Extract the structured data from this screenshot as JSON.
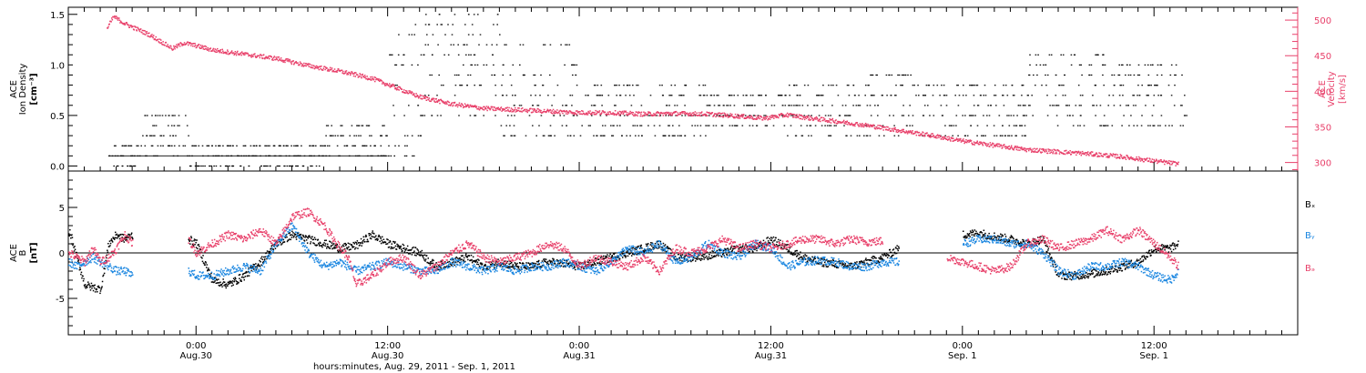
{
  "colors": {
    "black": "#000000",
    "pink": "#e8406a",
    "blue": "#1a86e0"
  },
  "xaxis": {
    "label": "hours:minutes, Aug. 29, 2011 - Sep.  1, 2011",
    "range_hours": [
      -32,
      45
    ],
    "ticks": [
      {
        "t": -24,
        "time": "0:00",
        "date": "Aug.30"
      },
      {
        "t": -12,
        "time": "12:00",
        "date": "Aug.30"
      },
      {
        "t": 0,
        "time": "0:00",
        "date": "Aug.31"
      },
      {
        "t": 12,
        "time": "12:00",
        "date": "Aug.31"
      },
      {
        "t": 24,
        "time": "0:00",
        "date": "Sep. 1"
      },
      {
        "t": 36,
        "time": "12:00",
        "date": "Sep. 1"
      }
    ],
    "minor_step_hours": 1
  },
  "chart_data": [
    {
      "type": "scatter",
      "panel": "top",
      "ylabel_left_lines": [
        "ACE",
        "Ion Density"
      ],
      "ylabel_left_unit": "[cm⁻³]",
      "ylabel_right_lines": [
        "ACE",
        "Velocity"
      ],
      "ylabel_right_unit": "[km/s]",
      "ylim_left": [
        -0.05,
        1.57
      ],
      "yticks_left": [
        "0.0",
        "0.5",
        "1.0",
        "1.5"
      ],
      "yticks_left_values": [
        0.0,
        0.5,
        1.0,
        1.5
      ],
      "ylim_right": [
        288,
        518
      ],
      "yticks_right": [
        "300",
        "350",
        "400",
        "450",
        "500"
      ],
      "yticks_right_values": [
        300,
        350,
        400,
        450,
        500
      ],
      "series": [
        {
          "axis": "left",
          "color": "#000000",
          "note": "quantized density levels",
          "segments": [
            {
              "t0": -29.5,
              "t1": -27.5,
              "levels": [
                0.0,
                0.1,
                0.2
              ]
            },
            {
              "t0": -27.5,
              "t1": -24.5,
              "levels": [
                0.1,
                0.2,
                0.3,
                0.4,
                0.5
              ]
            },
            {
              "t0": -24.5,
              "t1": -16,
              "levels": [
                0.0,
                0.1,
                0.2
              ]
            },
            {
              "t0": -16,
              "t1": -12,
              "levels": [
                0.1,
                0.2,
                0.3,
                0.4
              ]
            },
            {
              "t0": -12,
              "t1": -9.8,
              "levels": [
                0.1,
                0.2,
                0.3,
                0.5,
                0.6,
                0.8,
                1.0,
                1.1,
                1.3,
                1.4
              ]
            },
            {
              "t0": -9.8,
              "t1": -5,
              "levels": [
                0.5,
                0.7,
                0.8,
                0.9,
                1.0,
                1.1,
                1.2,
                1.3,
                1.4,
                1.5
              ]
            },
            {
              "t0": -5,
              "t1": 0,
              "levels": [
                0.3,
                0.4,
                0.5,
                0.6,
                0.7,
                0.8,
                0.9,
                1.0,
                1.2
              ]
            },
            {
              "t0": 0,
              "t1": 8,
              "levels": [
                0.3,
                0.4,
                0.5,
                0.6,
                0.7,
                0.8
              ]
            },
            {
              "t0": 8,
              "t1": 13,
              "levels": [
                0.4,
                0.5,
                0.6,
                0.7
              ]
            },
            {
              "t0": 13,
              "t1": 18,
              "levels": [
                0.3,
                0.4,
                0.5,
                0.6,
                0.7,
                0.8
              ]
            },
            {
              "t0": 18,
              "t1": 21,
              "levels": [
                0.3,
                0.4,
                0.5,
                0.6,
                0.7,
                0.8,
                0.9
              ]
            },
            {
              "t0": 21,
              "t1": 28,
              "levels": [
                0.3,
                0.4,
                0.5,
                0.6,
                0.7,
                0.8
              ]
            },
            {
              "t0": 28,
              "t1": 33,
              "levels": [
                0.4,
                0.5,
                0.6,
                0.7,
                0.8,
                0.9,
                1.0,
                1.1
              ]
            },
            {
              "t0": 33,
              "t1": 38,
              "levels": [
                0.4,
                0.5,
                0.6,
                0.7,
                0.8,
                0.9,
                1.0
              ]
            }
          ]
        },
        {
          "axis": "right",
          "color": "#e8406a",
          "name_note": "solar wind speed",
          "t": [
            -29.6,
            -29.2,
            -28.5,
            -27,
            -25.5,
            -24.8,
            -24.2,
            -23,
            -21,
            -19,
            -17,
            -15,
            -13,
            -11.5,
            -10,
            -8,
            -6,
            -4,
            -2,
            0,
            2,
            4,
            6,
            8,
            10,
            11.5,
            13,
            14.5,
            16,
            18,
            20,
            22,
            24,
            26,
            28,
            30,
            32,
            34,
            36,
            37.5
          ],
          "v": [
            488,
            505,
            495,
            480,
            460,
            468,
            465,
            458,
            452,
            446,
            436,
            428,
            418,
            405,
            392,
            382,
            376,
            374,
            372,
            370,
            370,
            368,
            369,
            368,
            365,
            362,
            367,
            362,
            358,
            352,
            345,
            338,
            330,
            324,
            318,
            315,
            312,
            308,
            302,
            298
          ]
        }
      ]
    },
    {
      "type": "scatter",
      "panel": "bottom",
      "ylabel_left_lines": [
        "ACE",
        "B"
      ],
      "ylabel_left_unit": "[nT]",
      "ylim": [
        -9,
        9
      ],
      "yticks": [
        "-5",
        "0",
        "5"
      ],
      "yticks_values": [
        -5,
        0,
        5
      ],
      "legend_placement": "right",
      "series": [
        {
          "name": "Bₓ",
          "color": "#000000",
          "t": [
            -32,
            -31,
            -30.5,
            -30,
            -29.5,
            -29,
            -28.5,
            -28,
            -27,
            -26,
            -25,
            -24.5,
            -24,
            -23,
            -22,
            -21,
            -20,
            -19,
            -18,
            -17,
            -16,
            -15,
            -14,
            -13,
            -12,
            -11,
            -10,
            -9,
            -8,
            -7,
            -6,
            -5,
            -4,
            -3,
            -2,
            -1,
            0,
            1,
            2,
            3,
            4,
            5,
            6,
            7,
            8,
            9,
            10,
            11,
            12,
            13,
            14,
            15,
            16,
            17,
            18,
            19,
            20,
            21,
            22,
            23,
            24,
            25,
            26,
            27,
            28,
            29,
            30,
            31,
            32,
            33,
            34,
            35,
            36,
            37,
            37.5
          ],
          "v": [
            2.5,
            -3.5,
            -3.8,
            -4.0,
            1.0,
            2.0,
            1.5,
            2.0,
            null,
            null,
            null,
            1.5,
            1.0,
            -3.0,
            -3.5,
            -2.5,
            -1.0,
            1.0,
            2.0,
            1.5,
            1.0,
            0.5,
            0.8,
            2.0,
            1.0,
            0.5,
            0.0,
            -1.5,
            -1.0,
            -0.5,
            -1.5,
            -1.0,
            -1.5,
            -1.5,
            -1.0,
            -1.2,
            -1.5,
            -1.0,
            -0.5,
            0.0,
            0.5,
            1.0,
            -0.5,
            -0.5,
            -0.3,
            0.0,
            0.5,
            0.5,
            1.5,
            0.5,
            -0.5,
            -1.0,
            -1.2,
            -1.5,
            -1.0,
            -0.5,
            0.5,
            null,
            null,
            null,
            2.0,
            2.2,
            1.8,
            1.5,
            1.0,
            1.5,
            -2.5,
            -2.5,
            -2.3,
            -2.0,
            -1.5,
            -1.0,
            0.5,
            0.5,
            1.0
          ]
        },
        {
          "name": "Bᵧ",
          "color": "#1a86e0",
          "t": [
            -32,
            -31.5,
            -31,
            -30.5,
            -30,
            -29.5,
            -29,
            -28.5,
            -28,
            -27,
            -26,
            -25,
            -24.5,
            -24,
            -23,
            -22,
            -21,
            -20,
            -19,
            -18,
            -17,
            -16,
            -15,
            -14,
            -13,
            -12,
            -11,
            -10,
            -9,
            -8,
            -7,
            -6,
            -5,
            -4,
            -3,
            -2,
            -1,
            0,
            1,
            2,
            3,
            4,
            5,
            6,
            7,
            8,
            9,
            10,
            11,
            12,
            13,
            14,
            15,
            16,
            17,
            18,
            19,
            20,
            21,
            22,
            23,
            24,
            25,
            26,
            27,
            28,
            29,
            30,
            31,
            32,
            33,
            34,
            35,
            36,
            37,
            37.5
          ],
          "v": [
            -1.0,
            -1.5,
            -1.0,
            -0.5,
            -1.0,
            -1.5,
            -2.0,
            -2.0,
            -2.5,
            null,
            null,
            null,
            -2.0,
            -2.5,
            -2.5,
            -2.0,
            -1.5,
            -2.0,
            1.0,
            3.0,
            0.0,
            -1.5,
            -1.0,
            -2.0,
            -1.5,
            -1.0,
            -1.5,
            -2.0,
            -2.0,
            -1.0,
            -1.5,
            -2.0,
            -1.5,
            -2.0,
            -1.5,
            -1.5,
            -1.0,
            -1.5,
            -2.0,
            -1.0,
            0.5,
            0.0,
            1.0,
            -1.0,
            -0.5,
            1.0,
            0.0,
            -0.5,
            1.0,
            0.5,
            -1.5,
            -1.0,
            -0.8,
            -1.0,
            -1.5,
            -1.5,
            -1.0,
            -1.0,
            null,
            null,
            null,
            1.0,
            1.5,
            1.5,
            1.0,
            1.0,
            0.0,
            -2.0,
            -2.5,
            -1.5,
            -1.5,
            -1.0,
            -1.5,
            -2.5,
            -3.0,
            -2.0
          ]
        },
        {
          "name": "Bₔ",
          "color": "#e8406a",
          "t": [
            -32,
            -31.5,
            -31,
            -30.5,
            -30,
            -29.5,
            -29,
            -28.5,
            -28,
            -27,
            -26,
            -25,
            -24.5,
            -24,
            -23,
            -22,
            -21,
            -20,
            -19,
            -18,
            -17,
            -16,
            -15,
            -14.5,
            -14,
            -13,
            -12,
            -11,
            -10,
            -9,
            -8,
            -7,
            -6,
            -5,
            -4,
            -3,
            -2,
            -1,
            0,
            1,
            2,
            3,
            4,
            5,
            6,
            7,
            8,
            9,
            10,
            11,
            12,
            13,
            14,
            15,
            16,
            17,
            18,
            19,
            20,
            21,
            22,
            23,
            24,
            25,
            26,
            27,
            28,
            29,
            30,
            31,
            32,
            33,
            34,
            35,
            36,
            37,
            37.5
          ],
          "v": [
            0.0,
            -0.5,
            -1.0,
            0.5,
            -1.0,
            -0.5,
            0.5,
            2.0,
            1.0,
            null,
            null,
            null,
            1.5,
            0.0,
            1.0,
            2.0,
            1.5,
            2.5,
            1.0,
            4.0,
            4.5,
            3.0,
            0.5,
            -0.5,
            -3.5,
            -2.5,
            -1.0,
            -0.5,
            -2.5,
            -1.5,
            0.0,
            1.0,
            -0.5,
            -1.0,
            -0.5,
            0.0,
            1.0,
            0.5,
            -1.5,
            -0.5,
            -1.0,
            -1.5,
            -0.5,
            -2.0,
            0.5,
            0.0,
            0.5,
            1.5,
            0.5,
            1.0,
            0.5,
            1.0,
            1.5,
            1.5,
            1.0,
            1.5,
            1.2,
            1.3,
            null,
            null,
            null,
            -0.5,
            -1.0,
            -1.5,
            -2.0,
            -1.5,
            1.0,
            1.5,
            0.5,
            1.0,
            1.5,
            2.5,
            1.5,
            2.5,
            1.0,
            -0.5,
            -1.5
          ]
        }
      ]
    }
  ]
}
